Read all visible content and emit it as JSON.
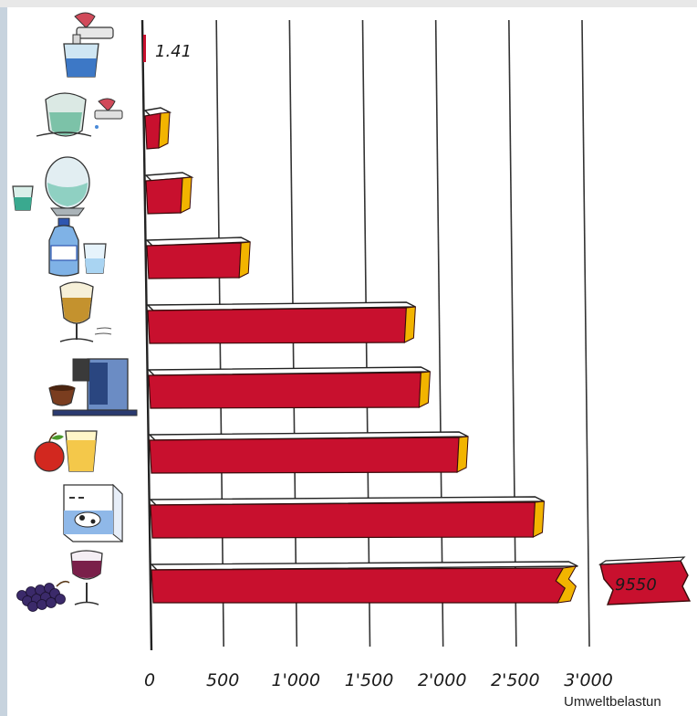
{
  "chart_data": {
    "type": "bar",
    "orientation": "horizontal",
    "categories": [
      "tap water",
      "tap water filtered",
      "water dispenser",
      "bottled water",
      "beer",
      "coffee",
      "apple juice",
      "milk",
      "red wine"
    ],
    "values": [
      1.41,
      100,
      250,
      650,
      1780,
      1880,
      2140,
      2660,
      9550
    ],
    "value_labels": [
      "1.41",
      "",
      "",
      "",
      "",
      "",
      "",
      "",
      "9550"
    ],
    "xlim": [
      0,
      3000
    ],
    "xticks": [
      0,
      500,
      1000,
      1500,
      2000,
      2500,
      3000
    ],
    "xtick_labels": [
      "0",
      "500",
      "1'000",
      "1'500",
      "2'000",
      "2'500",
      "3'000"
    ],
    "broken_axis_category": "red wine",
    "grid": "vertical",
    "bar_color": "#c8102e",
    "bar_end_color": "#f2b400",
    "title": "",
    "xlabel": "",
    "ylabel": ""
  },
  "caption": "Umweltbelastun",
  "icons": [
    "tap-glass-icon",
    "filter-jug-tap-icon",
    "water-cooler-icon",
    "water-bottle-glass-icon",
    "beer-glass-icon",
    "coffee-machine-icon",
    "apple-juice-icon",
    "milk-carton-cow-icon",
    "wine-grapes-icon"
  ]
}
